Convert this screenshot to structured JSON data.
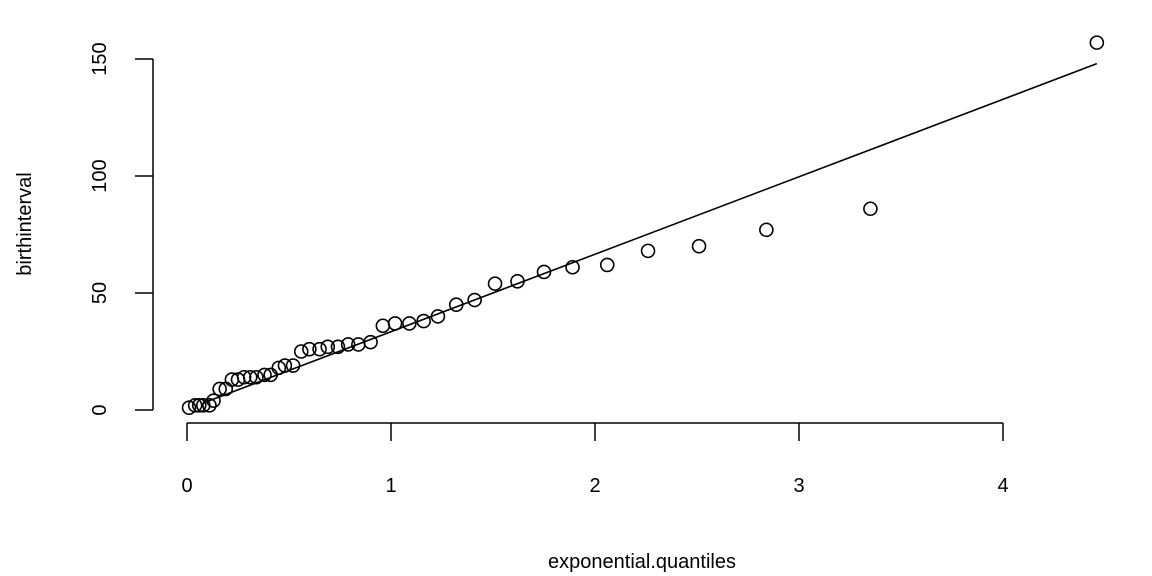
{
  "chart_data": {
    "type": "scatter",
    "title": "",
    "xlabel": "exponential.quantiles",
    "ylabel": "birthinterval",
    "xlim": [
      0,
      4.5
    ],
    "ylim": [
      0,
      157
    ],
    "x_ticks": [
      0,
      1,
      2,
      3,
      4
    ],
    "x_tick_labels": [
      "0",
      "1",
      "2",
      "3",
      "4"
    ],
    "y_ticks": [
      0,
      50,
      100,
      150
    ],
    "y_tick_labels": [
      "0",
      "50",
      "100",
      "150"
    ],
    "grid": false,
    "legend": "none",
    "colors": {
      "points": "#000000",
      "line": "#000000",
      "axes": "#000000",
      "background": "#ffffff"
    },
    "points": {
      "x": [
        0.01,
        0.04,
        0.06,
        0.08,
        0.11,
        0.13,
        0.16,
        0.19,
        0.22,
        0.25,
        0.28,
        0.31,
        0.34,
        0.38,
        0.41,
        0.45,
        0.48,
        0.52,
        0.56,
        0.6,
        0.65,
        0.69,
        0.74,
        0.79,
        0.84,
        0.9,
        0.96,
        1.02,
        1.09,
        1.16,
        1.23,
        1.32,
        1.41,
        1.51,
        1.62,
        1.75,
        1.89,
        2.06,
        2.26,
        2.51,
        2.84,
        3.35,
        4.46
      ],
      "y": [
        1,
        2,
        2,
        2,
        2,
        4,
        9,
        9,
        13,
        13,
        14,
        14,
        14,
        15,
        15,
        18,
        19,
        19,
        25,
        26,
        26,
        27,
        27,
        28,
        28,
        29,
        36,
        37,
        37,
        38,
        40,
        45,
        47,
        54,
        55,
        59,
        61,
        62,
        68,
        70,
        77,
        86,
        157
      ]
    },
    "fit_line": {
      "x": [
        0.08,
        4.46
      ],
      "y": [
        3,
        148
      ]
    }
  }
}
